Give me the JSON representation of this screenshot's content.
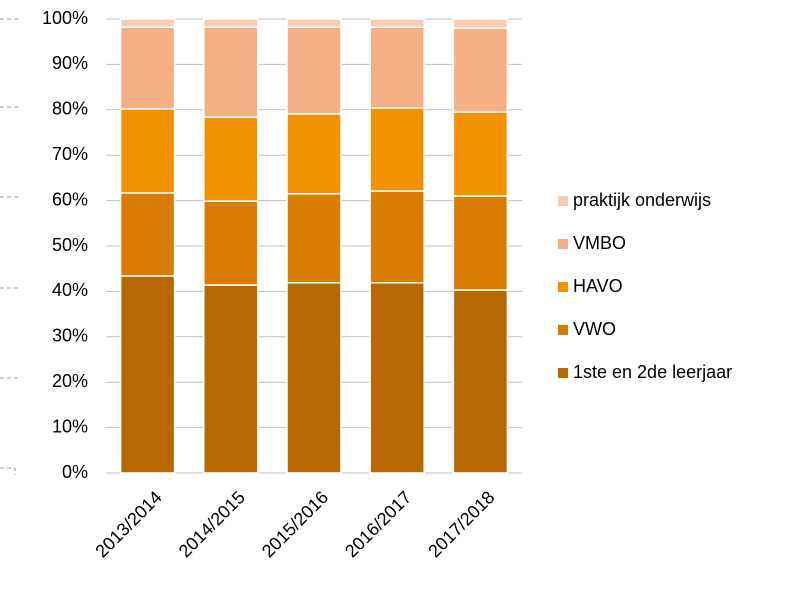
{
  "chart_data": {
    "type": "stacked_bar",
    "categories": [
      "2013/2014",
      "2014/2015",
      "2015/2016",
      "2016/2017",
      "2017/2018"
    ],
    "series": [
      {
        "name": "1ste en 2de leerjaar",
        "color": "#b86800",
        "values": [
          43.4,
          41.4,
          41.9,
          41.9,
          40.3
        ]
      },
      {
        "name": "VWO",
        "color": "#d97d00",
        "values": [
          18.3,
          18.5,
          19.6,
          20.2,
          20.7
        ]
      },
      {
        "name": "HAVO",
        "color": "#f39200",
        "values": [
          18.5,
          18.5,
          17.6,
          18.3,
          18.5
        ]
      },
      {
        "name": "VMBO",
        "color": "#f4b084",
        "values": [
          18.0,
          19.8,
          19.1,
          17.8,
          18.5
        ]
      },
      {
        "name": "praktijk onderwijs",
        "color": "#f9cbb0",
        "values": [
          1.8,
          1.8,
          1.8,
          1.8,
          2.0
        ]
      }
    ],
    "ylim": [
      0,
      100
    ],
    "yticks": [
      {
        "value": 0,
        "label": "0%"
      },
      {
        "value": 10,
        "label": "10%"
      },
      {
        "value": 20,
        "label": "20%"
      },
      {
        "value": 30,
        "label": "30%"
      },
      {
        "value": 40,
        "label": "40%"
      },
      {
        "value": 50,
        "label": "50%"
      },
      {
        "value": 60,
        "label": "60%"
      },
      {
        "value": 70,
        "label": "70%"
      },
      {
        "value": 80,
        "label": "80%"
      },
      {
        "value": 90,
        "label": "90%"
      },
      {
        "value": 100,
        "label": "100%"
      }
    ],
    "grid": true,
    "legend": "right"
  }
}
